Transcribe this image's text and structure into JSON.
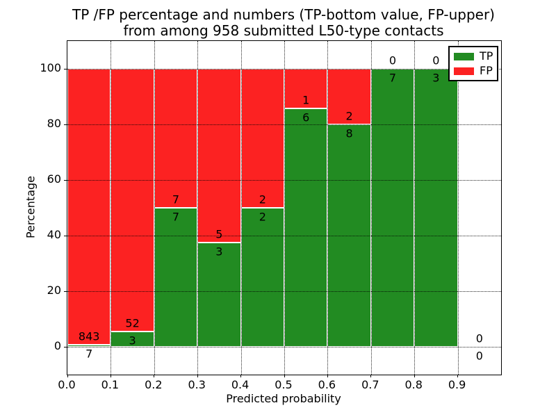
{
  "figure": {
    "title_line1": "TP /FP percentage and numbers (TP-bottom value, FP-upper)",
    "title_line2": "from among 958 submitted L50-type contacts"
  },
  "chart_data": {
    "type": "bar",
    "subtype": "stacked-percentage-histogram",
    "title": "TP /FP percentage and numbers (TP-bottom value, FP-upper) from among 958 submitted L50-type contacts",
    "xlabel": "Predicted probability",
    "ylabel": "Percentage",
    "xlim": [
      0.0,
      1.0
    ],
    "ylim": [
      -10,
      110
    ],
    "bin_width": 0.1,
    "bin_edges": [
      0.0,
      0.1,
      0.2,
      0.3,
      0.4,
      0.5,
      0.6,
      0.7,
      0.8,
      0.9,
      1.0
    ],
    "x_tick_labels": [
      "0.0",
      "0.1",
      "0.2",
      "0.3",
      "0.4",
      "0.5",
      "0.6",
      "0.7",
      "0.8",
      "0.9"
    ],
    "y_tick_values": [
      0,
      20,
      40,
      60,
      80,
      100
    ],
    "y_tick_labels": [
      "0",
      "20",
      "40",
      "60",
      "80",
      "100"
    ],
    "grid": {
      "on": true,
      "style": "dotted",
      "color": "#000000",
      "above_bars": true
    },
    "total_contacts": 958,
    "series": [
      {
        "name": "TP",
        "color": "#228b22",
        "counts": [
          7,
          3,
          7,
          3,
          2,
          6,
          8,
          7,
          3,
          0
        ],
        "pct": [
          0.82,
          5.45,
          50.0,
          37.5,
          50.0,
          85.71,
          80.0,
          100.0,
          100.0,
          0.0
        ]
      },
      {
        "name": "FP",
        "color": "#fc2222",
        "counts": [
          843,
          52,
          7,
          5,
          2,
          1,
          2,
          0,
          0,
          0
        ],
        "pct": [
          99.18,
          94.55,
          50.0,
          62.5,
          50.0,
          14.29,
          20.0,
          0.0,
          0.0,
          0.0
        ]
      }
    ],
    "legend": {
      "position": "upper-right",
      "items": [
        {
          "label": "TP",
          "color": "#228b22"
        },
        {
          "label": "FP",
          "color": "#fc2222"
        }
      ]
    },
    "bar_edge_color": "#ffffff"
  }
}
